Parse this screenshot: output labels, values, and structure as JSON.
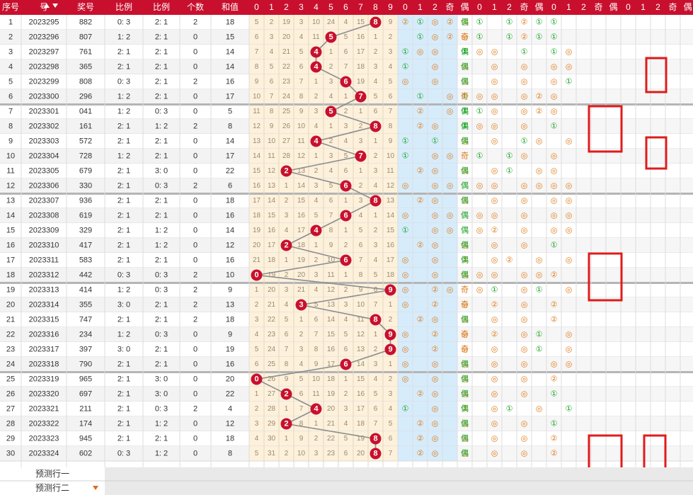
{
  "header": {
    "left": [
      "序号",
      "号",
      "奖号",
      "比例",
      "比例",
      "个数",
      "和值"
    ],
    "digits": [
      "0",
      "1",
      "2",
      "3",
      "4",
      "5",
      "6",
      "7",
      "8",
      "9"
    ],
    "mod3_a": [
      "0",
      "1",
      "2"
    ],
    "parity_a": [
      "奇",
      "偶"
    ],
    "mod3_b": [
      "0",
      "1",
      "2"
    ],
    "parity_b": [
      "奇",
      "偶"
    ],
    "mod3_c": [
      "0",
      "1",
      "2"
    ],
    "parity_c": [
      "奇",
      "偶"
    ],
    "mod3_d": [
      "0",
      "1",
      "2"
    ],
    "parity_d": [
      "奇",
      "偶"
    ]
  },
  "rows": [
    {
      "seq": "1",
      "issue": "2023295",
      "num": "882",
      "r1": "0: 3",
      "r2": "2: 1",
      "cnt": "2",
      "sum": "18",
      "hit": 8,
      "miss": [
        "5",
        "2",
        "19",
        "3",
        "10",
        "24",
        "4",
        "15",
        "",
        "9"
      ]
    },
    {
      "seq": "2",
      "issue": "2023296",
      "num": "807",
      "r1": "1: 2",
      "r2": "2: 1",
      "cnt": "0",
      "sum": "15",
      "hit": 5,
      "miss": [
        "6",
        "3",
        "20",
        "4",
        "11",
        "",
        "5",
        "16",
        "1",
        "2"
      ]
    },
    {
      "seq": "3",
      "issue": "2023297",
      "num": "761",
      "r1": "2: 1",
      "r2": "2: 1",
      "cnt": "0",
      "sum": "14",
      "hit": 4,
      "miss": [
        "7",
        "4",
        "21",
        "5",
        "",
        "1",
        "6",
        "17",
        "2",
        "3"
      ]
    },
    {
      "seq": "4",
      "issue": "2023298",
      "num": "365",
      "r1": "2: 1",
      "r2": "2: 1",
      "cnt": "0",
      "sum": "14",
      "hit": 4,
      "miss": [
        "8",
        "5",
        "22",
        "6",
        "",
        "2",
        "7",
        "18",
        "3",
        "4"
      ]
    },
    {
      "seq": "5",
      "issue": "2023299",
      "num": "808",
      "r1": "0: 3",
      "r2": "2: 1",
      "cnt": "2",
      "sum": "16",
      "hit": 6,
      "miss": [
        "9",
        "6",
        "23",
        "7",
        "1",
        "3",
        "",
        "19",
        "4",
        "5"
      ]
    },
    {
      "seq": "6",
      "issue": "2023300",
      "num": "296",
      "r1": "1: 2",
      "r2": "2: 1",
      "cnt": "0",
      "sum": "17",
      "hit": 7,
      "miss": [
        "10",
        "7",
        "24",
        "8",
        "2",
        "4",
        "1",
        "",
        "5",
        "6"
      ]
    },
    {
      "seq": "7",
      "issue": "2023301",
      "num": "041",
      "r1": "1: 2",
      "r2": "0: 3",
      "cnt": "0",
      "sum": "5",
      "hit": 5,
      "miss": [
        "11",
        "8",
        "25",
        "9",
        "3",
        "",
        "2",
        "1",
        "6",
        "7"
      ]
    },
    {
      "seq": "8",
      "issue": "2023302",
      "num": "161",
      "r1": "2: 1",
      "r2": "1: 2",
      "cnt": "2",
      "sum": "8",
      "hit": 8,
      "miss": [
        "12",
        "9",
        "26",
        "10",
        "4",
        "1",
        "3",
        "2",
        "",
        "8"
      ]
    },
    {
      "seq": "9",
      "issue": "2023303",
      "num": "572",
      "r1": "2: 1",
      "r2": "2: 1",
      "cnt": "0",
      "sum": "14",
      "hit": 4,
      "miss": [
        "13",
        "10",
        "27",
        "11",
        "",
        "2",
        "4",
        "3",
        "1",
        "9"
      ]
    },
    {
      "seq": "10",
      "issue": "2023304",
      "num": "728",
      "r1": "1: 2",
      "r2": "2: 1",
      "cnt": "0",
      "sum": "17",
      "hit": 7,
      "miss": [
        "14",
        "11",
        "28",
        "12",
        "1",
        "3",
        "5",
        "",
        "2",
        "10"
      ]
    },
    {
      "seq": "11",
      "issue": "2023305",
      "num": "679",
      "r1": "2: 1",
      "r2": "3: 0",
      "cnt": "0",
      "sum": "22",
      "hit": 2,
      "miss": [
        "15",
        "12",
        "",
        "13",
        "2",
        "4",
        "6",
        "1",
        "3",
        "11"
      ]
    },
    {
      "seq": "12",
      "issue": "2023306",
      "num": "330",
      "r1": "2: 1",
      "r2": "0: 3",
      "cnt": "2",
      "sum": "6",
      "hit": 6,
      "miss": [
        "16",
        "13",
        "1",
        "14",
        "3",
        "5",
        "",
        "2",
        "4",
        "12"
      ]
    },
    {
      "seq": "13",
      "issue": "2023307",
      "num": "936",
      "r1": "2: 1",
      "r2": "2: 1",
      "cnt": "0",
      "sum": "18",
      "hit": 8,
      "miss": [
        "17",
        "14",
        "2",
        "15",
        "4",
        "6",
        "1",
        "3",
        "",
        "13"
      ]
    },
    {
      "seq": "14",
      "issue": "2023308",
      "num": "619",
      "r1": "2: 1",
      "r2": "2: 1",
      "cnt": "0",
      "sum": "16",
      "hit": 6,
      "miss": [
        "18",
        "15",
        "3",
        "16",
        "5",
        "7",
        "",
        "4",
        "1",
        "14"
      ]
    },
    {
      "seq": "15",
      "issue": "2023309",
      "num": "329",
      "r1": "2: 1",
      "r2": "1: 2",
      "cnt": "0",
      "sum": "14",
      "hit": 4,
      "miss": [
        "19",
        "16",
        "4",
        "17",
        "",
        "8",
        "1",
        "5",
        "2",
        "15"
      ]
    },
    {
      "seq": "16",
      "issue": "2023310",
      "num": "417",
      "r1": "2: 1",
      "r2": "1: 2",
      "cnt": "0",
      "sum": "12",
      "hit": 2,
      "miss": [
        "20",
        "17",
        "",
        "18",
        "1",
        "9",
        "2",
        "6",
        "3",
        "16"
      ]
    },
    {
      "seq": "17",
      "issue": "2023311",
      "num": "583",
      "r1": "2: 1",
      "r2": "2: 1",
      "cnt": "0",
      "sum": "16",
      "hit": 6,
      "miss": [
        "21",
        "18",
        "1",
        "19",
        "2",
        "10",
        "",
        "7",
        "4",
        "17"
      ]
    },
    {
      "seq": "18",
      "issue": "2023312",
      "num": "442",
      "r1": "0: 3",
      "r2": "0: 3",
      "cnt": "2",
      "sum": "10",
      "hit": 0,
      "miss": [
        "",
        "19",
        "2",
        "20",
        "3",
        "11",
        "1",
        "8",
        "5",
        "18"
      ]
    },
    {
      "seq": "19",
      "issue": "2023313",
      "num": "414",
      "r1": "1: 2",
      "r2": "0: 3",
      "cnt": "2",
      "sum": "9",
      "hit": 9,
      "miss": [
        "1",
        "20",
        "3",
        "21",
        "4",
        "12",
        "2",
        "9",
        "6",
        ""
      ]
    },
    {
      "seq": "20",
      "issue": "2023314",
      "num": "355",
      "r1": "3: 0",
      "r2": "2: 1",
      "cnt": "2",
      "sum": "13",
      "hit": 3,
      "miss": [
        "2",
        "21",
        "4",
        "",
        "5",
        "13",
        "3",
        "10",
        "7",
        "1"
      ]
    },
    {
      "seq": "21",
      "issue": "2023315",
      "num": "747",
      "r1": "2: 1",
      "r2": "2: 1",
      "cnt": "2",
      "sum": "18",
      "hit": 8,
      "miss": [
        "3",
        "22",
        "5",
        "1",
        "6",
        "14",
        "4",
        "11",
        "",
        "2"
      ]
    },
    {
      "seq": "22",
      "issue": "2023316",
      "num": "234",
      "r1": "1: 2",
      "r2": "0: 3",
      "cnt": "0",
      "sum": "9",
      "hit": 9,
      "miss": [
        "4",
        "23",
        "6",
        "2",
        "7",
        "15",
        "5",
        "12",
        "1",
        ""
      ]
    },
    {
      "seq": "23",
      "issue": "2023317",
      "num": "397",
      "r1": "3: 0",
      "r2": "2: 1",
      "cnt": "0",
      "sum": "19",
      "hit": 9,
      "miss": [
        "5",
        "24",
        "7",
        "3",
        "8",
        "16",
        "6",
        "13",
        "2",
        ""
      ]
    },
    {
      "seq": "24",
      "issue": "2023318",
      "num": "790",
      "r1": "2: 1",
      "r2": "2: 1",
      "cnt": "0",
      "sum": "16",
      "hit": 6,
      "miss": [
        "6",
        "25",
        "8",
        "4",
        "9",
        "17",
        "",
        "14",
        "3",
        "1"
      ]
    },
    {
      "seq": "25",
      "issue": "2023319",
      "num": "965",
      "r1": "2: 1",
      "r2": "3: 0",
      "cnt": "0",
      "sum": "20",
      "hit": 0,
      "miss": [
        "",
        "26",
        "9",
        "5",
        "10",
        "18",
        "1",
        "15",
        "4",
        "2"
      ]
    },
    {
      "seq": "26",
      "issue": "2023320",
      "num": "697",
      "r1": "2: 1",
      "r2": "3: 0",
      "cnt": "0",
      "sum": "22",
      "hit": 2,
      "miss": [
        "1",
        "27",
        "",
        "6",
        "11",
        "19",
        "2",
        "16",
        "5",
        "3"
      ]
    },
    {
      "seq": "27",
      "issue": "2023321",
      "num": "211",
      "r1": "2: 1",
      "r2": "0: 3",
      "cnt": "2",
      "sum": "4",
      "hit": 4,
      "miss": [
        "2",
        "28",
        "1",
        "7",
        "",
        "20",
        "3",
        "17",
        "6",
        "4"
      ]
    },
    {
      "seq": "28",
      "issue": "2023322",
      "num": "174",
      "r1": "2: 1",
      "r2": "1: 2",
      "cnt": "0",
      "sum": "12",
      "hit": 2,
      "miss": [
        "3",
        "29",
        "",
        "8",
        "1",
        "21",
        "4",
        "18",
        "7",
        "5"
      ]
    },
    {
      "seq": "29",
      "issue": "2023323",
      "num": "945",
      "r1": "2: 1",
      "r2": "2: 1",
      "cnt": "0",
      "sum": "18",
      "hit": 8,
      "miss": [
        "4",
        "30",
        "1",
        "9",
        "2",
        "22",
        "5",
        "19",
        "",
        "6"
      ]
    },
    {
      "seq": "30",
      "issue": "2023324",
      "num": "602",
      "r1": "0: 3",
      "r2": "1: 2",
      "cnt": "0",
      "sum": "8",
      "hit": 8,
      "miss": [
        "5",
        "31",
        "2",
        "10",
        "3",
        "23",
        "6",
        "20",
        "",
        "7"
      ]
    }
  ],
  "right": [
    [
      2,
      1,
      0,
      2,
      0,
      1,
      "",
      1,
      2,
      1,
      1,
      ""
    ],
    [
      "",
      1,
      0,
      2,
      0,
      1,
      "",
      1,
      2,
      1,
      1,
      ""
    ],
    [
      1,
      0,
      0,
      "",
      1,
      0,
      0,
      "",
      1,
      "",
      1,
      0
    ],
    [
      1,
      "",
      0,
      "",
      0,
      "",
      0,
      "",
      0,
      "",
      0,
      0
    ],
    [
      0,
      "",
      0,
      "",
      0,
      "",
      0,
      "",
      0,
      "",
      0,
      1
    ],
    [
      "",
      1,
      "",
      0,
      1,
      0,
      0,
      "",
      0,
      2,
      0,
      ""
    ],
    [
      "",
      2,
      "",
      0,
      1,
      1,
      0,
      "",
      0,
      2,
      0,
      ""
    ],
    [
      "",
      2,
      0,
      "",
      1,
      0,
      0,
      "",
      0,
      "",
      1,
      ""
    ],
    [
      1,
      "",
      1,
      "",
      0,
      "",
      0,
      "",
      1,
      0,
      "",
      0
    ],
    [
      1,
      "",
      0,
      0,
      "",
      1,
      "",
      1,
      0,
      "",
      0,
      ""
    ],
    [
      "",
      2,
      0,
      "",
      0,
      "",
      0,
      1,
      "",
      0,
      0,
      ""
    ],
    [
      0,
      "",
      0,
      0,
      "",
      0,
      0,
      "",
      0,
      0,
      0,
      0
    ],
    [
      "",
      2,
      0,
      "",
      0,
      "",
      0,
      "",
      0,
      "",
      0,
      0
    ],
    [
      0,
      "",
      0,
      0,
      "",
      0,
      0,
      "",
      0,
      "",
      0,
      0
    ],
    [
      1,
      "",
      0,
      0,
      "",
      0,
      2,
      "",
      0,
      "",
      0,
      0
    ],
    [
      "",
      2,
      0,
      "",
      0,
      "",
      0,
      "",
      0,
      "",
      1,
      ""
    ],
    [
      0,
      "",
      0,
      "",
      2,
      "",
      0,
      2,
      "",
      0,
      "",
      0
    ],
    [
      0,
      "",
      0,
      "",
      0,
      0,
      0,
      "",
      0,
      0,
      2,
      ""
    ],
    [
      0,
      "",
      2,
      0,
      "",
      0,
      1,
      "",
      0,
      1,
      "",
      0
    ],
    [
      0,
      "",
      2,
      "",
      0,
      "",
      2,
      "",
      0,
      "",
      2,
      ""
    ],
    [
      "",
      2,
      0,
      "",
      0,
      "",
      0,
      "",
      0,
      "",
      2,
      ""
    ],
    [
      0,
      "",
      2,
      "",
      0,
      "",
      2,
      "",
      0,
      1,
      "",
      0
    ],
    [
      0,
      "",
      2,
      "",
      0,
      "",
      0,
      "",
      0,
      1,
      "",
      0
    ],
    [
      0,
      "",
      0,
      "",
      0,
      "",
      0,
      "",
      0,
      "",
      0,
      0
    ],
    [
      0,
      "",
      0,
      "",
      0,
      "",
      0,
      "",
      0,
      "",
      2,
      ""
    ],
    [
      "",
      2,
      0,
      "",
      0,
      "",
      0,
      "",
      0,
      "",
      1,
      ""
    ],
    [
      1,
      "",
      0,
      "",
      2,
      "",
      0,
      1,
      "",
      0,
      "",
      1
    ],
    [
      "",
      2,
      0,
      "",
      0,
      "",
      0,
      "",
      0,
      "",
      1,
      ""
    ],
    [
      "",
      2,
      0,
      "",
      0,
      "",
      0,
      "",
      0,
      "",
      2,
      ""
    ],
    [
      "",
      2,
      0,
      "",
      0,
      "",
      0,
      "",
      0,
      "",
      2,
      ""
    ]
  ],
  "footer": {
    "predict1": "预测行一",
    "predict2": "预测行二"
  }
}
